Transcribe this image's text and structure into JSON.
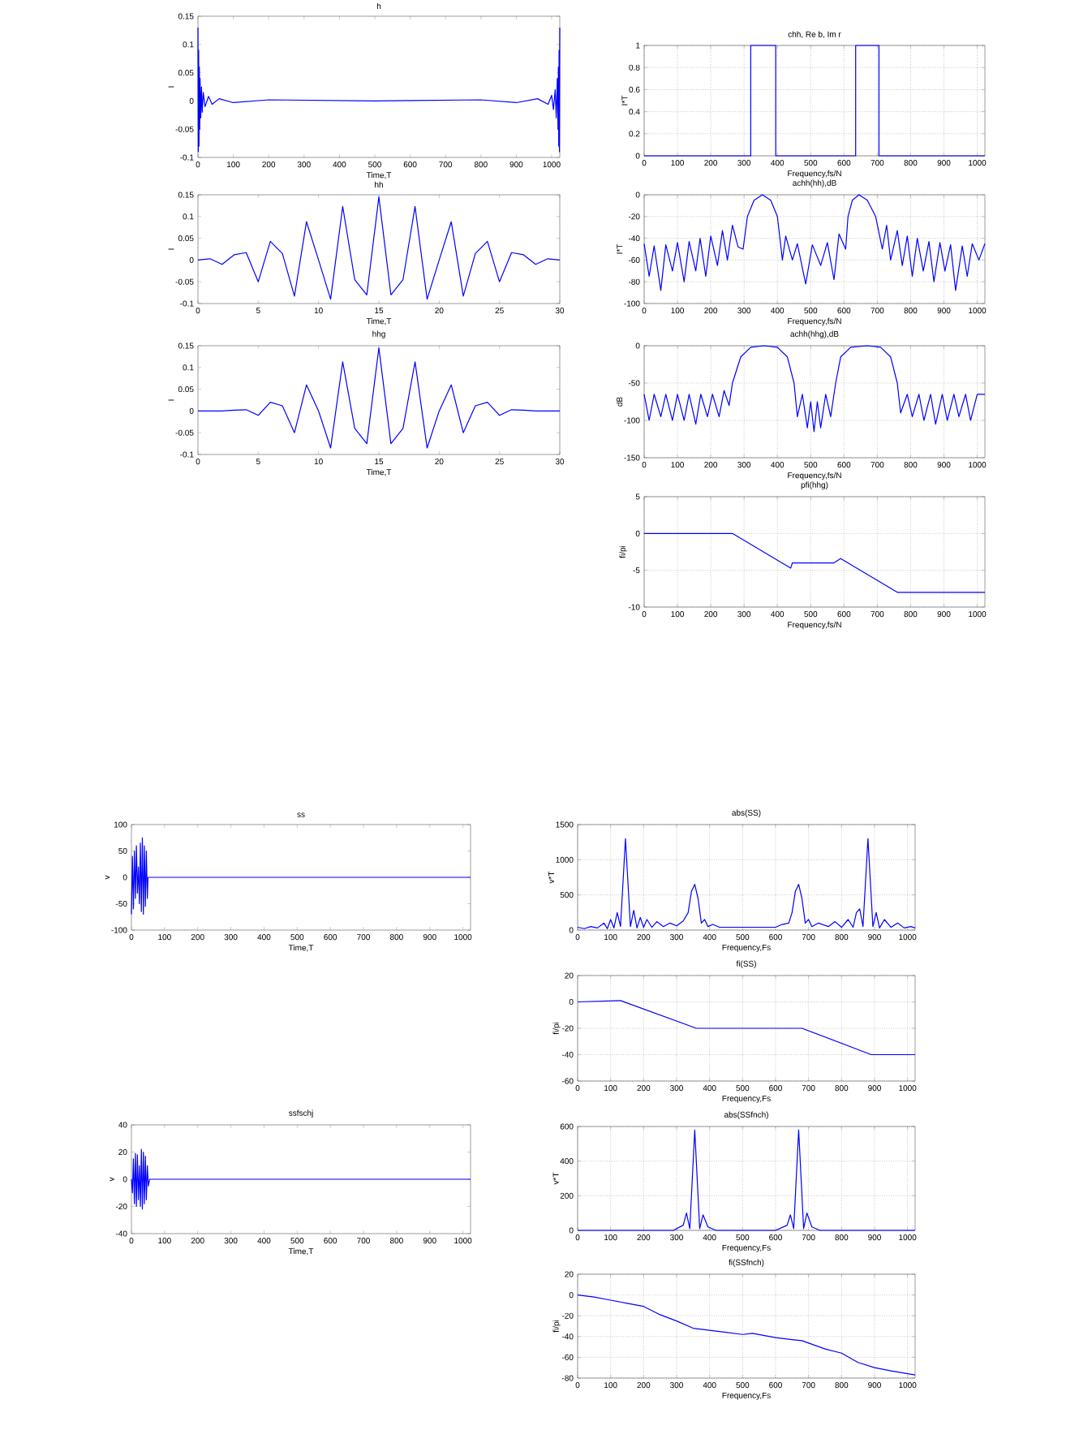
{
  "chart_data": [
    {
      "type": "line",
      "title": "h",
      "xlabel": "Time,T",
      "ylabel": "I",
      "color": "#0000ff",
      "xlim": [
        0,
        1023
      ],
      "ylim": [
        -0.1,
        0.15
      ],
      "xticks": [
        0,
        100,
        200,
        300,
        400,
        500,
        600,
        700,
        800,
        900,
        1000
      ],
      "yticks": [
        -0.1,
        -0.05,
        0,
        0.05,
        0.1,
        0.15
      ],
      "x": [
        0,
        1,
        2,
        3,
        4,
        5,
        6,
        8,
        10,
        12,
        15,
        20,
        30,
        40,
        60,
        100,
        200,
        500,
        800,
        900,
        960,
        990,
        1000,
        1005,
        1010,
        1013,
        1016,
        1018,
        1019,
        1020,
        1021,
        1022,
        1023
      ],
      "values": [
        0.13,
        -0.09,
        0.09,
        -0.08,
        0.06,
        -0.05,
        0.04,
        -0.03,
        0.025,
        -0.02,
        0.015,
        -0.01,
        0.008,
        -0.006,
        0.004,
        -0.003,
        0.002,
        0,
        0.002,
        -0.003,
        0.004,
        -0.006,
        0.01,
        -0.015,
        0.02,
        -0.03,
        0.04,
        -0.05,
        0.06,
        -0.08,
        0.09,
        -0.09,
        0.13
      ]
    },
    {
      "type": "line",
      "title": "hh",
      "xlabel": "Time,T",
      "ylabel": "I",
      "color": "#0000ff",
      "xlim": [
        0,
        30
      ],
      "ylim": [
        -0.1,
        0.15
      ],
      "xticks": [
        0,
        5,
        10,
        15,
        20,
        25,
        30
      ],
      "yticks": [
        -0.1,
        -0.05,
        0,
        0.05,
        0.1,
        0.15
      ],
      "x": [
        0,
        1,
        2,
        3,
        4,
        5,
        6,
        7,
        8,
        9,
        10,
        11,
        12,
        13,
        14,
        15,
        16,
        17,
        18,
        19,
        20,
        21,
        22,
        23,
        24,
        25,
        26,
        27,
        28,
        29,
        30
      ],
      "values": [
        0,
        0.003,
        -0.01,
        0.012,
        0.017,
        -0.05,
        0.043,
        0.015,
        -0.083,
        0.088,
        0,
        -0.09,
        0.123,
        -0.045,
        -0.08,
        0.145,
        -0.08,
        -0.045,
        0.123,
        -0.09,
        0,
        0.088,
        -0.083,
        0.015,
        0.043,
        -0.05,
        0.017,
        0.012,
        -0.01,
        0.003,
        0
      ]
    },
    {
      "type": "line",
      "title": "hhg",
      "xlabel": "Time,T",
      "ylabel": "I",
      "color": "#0000ff",
      "xlim": [
        0,
        30
      ],
      "ylim": [
        -0.1,
        0.15
      ],
      "xticks": [
        0,
        5,
        10,
        15,
        20,
        25,
        30
      ],
      "yticks": [
        -0.1,
        -0.05,
        0,
        0.05,
        0.1,
        0.15
      ],
      "x": [
        0,
        1,
        2,
        3,
        4,
        5,
        6,
        7,
        8,
        9,
        10,
        11,
        12,
        13,
        14,
        15,
        16,
        17,
        18,
        19,
        20,
        21,
        22,
        23,
        24,
        25,
        26,
        27,
        28,
        29,
        30
      ],
      "values": [
        0,
        0,
        0,
        0.002,
        0.003,
        -0.01,
        0.02,
        0.012,
        -0.05,
        0.06,
        0,
        -0.085,
        0.113,
        -0.04,
        -0.075,
        0.145,
        -0.075,
        -0.04,
        0.113,
        -0.085,
        0,
        0.06,
        -0.05,
        0.012,
        0.02,
        -0.01,
        0.003,
        0.002,
        0,
        0,
        0
      ]
    },
    {
      "type": "line",
      "title": "chh, Re b, Im r",
      "xlabel": "Frequency,fs/N",
      "ylabel": "I*T",
      "color": "#0000ff",
      "grid": true,
      "xlim": [
        0,
        1023
      ],
      "ylim": [
        0,
        1
      ],
      "xticks": [
        0,
        100,
        200,
        300,
        400,
        500,
        600,
        700,
        800,
        900,
        1000
      ],
      "yticks": [
        0,
        0.2,
        0.4,
        0.6,
        0.8,
        1
      ],
      "x": [
        0,
        320,
        320,
        395,
        395,
        635,
        635,
        705,
        705,
        1023
      ],
      "values": [
        0,
        0,
        1,
        1,
        0,
        0,
        1,
        1,
        0,
        0
      ]
    },
    {
      "type": "line",
      "title": "achh(hh),dB",
      "xlabel": "Frequency,fs/N",
      "ylabel": "I*T",
      "color": "#0000ff",
      "grid": true,
      "xlim": [
        0,
        1023
      ],
      "ylim": [
        -100,
        0
      ],
      "xticks": [
        0,
        100,
        200,
        300,
        400,
        500,
        600,
        700,
        800,
        900,
        1000
      ],
      "yticks": [
        -100,
        -80,
        -60,
        -40,
        -20,
        0
      ],
      "x": [
        0,
        15,
        30,
        50,
        65,
        85,
        100,
        120,
        135,
        155,
        168,
        185,
        200,
        220,
        235,
        250,
        265,
        282,
        297,
        310,
        330,
        355,
        380,
        400,
        415,
        425,
        445,
        460,
        485,
        505,
        530,
        550,
        570,
        585,
        605,
        612,
        625,
        645,
        670,
        695,
        715,
        728,
        740,
        760,
        775,
        790,
        805,
        820,
        838,
        855,
        870,
        888,
        903,
        920,
        935,
        955,
        970,
        985,
        1005,
        1023
      ],
      "values": [
        -45,
        -75,
        -47,
        -88,
        -46,
        -70,
        -44,
        -80,
        -43,
        -70,
        -40,
        -75,
        -38,
        -65,
        -33,
        -60,
        -28,
        -48,
        -50,
        -20,
        -5,
        0,
        -5,
        -20,
        -60,
        -38,
        -60,
        -45,
        -82,
        -46,
        -65,
        -44,
        -78,
        -36,
        -50,
        -20,
        -5,
        0,
        -5,
        -20,
        -50,
        -28,
        -60,
        -33,
        -65,
        -38,
        -75,
        -40,
        -70,
        -43,
        -80,
        -44,
        -70,
        -46,
        -88,
        -47,
        -75,
        -45,
        -60,
        -45
      ]
    },
    {
      "type": "line",
      "title": "achh(hhg),dB",
      "xlabel": "Frequency,fs/N",
      "ylabel": "dB",
      "color": "#0000ff",
      "grid": true,
      "xlim": [
        0,
        1023
      ],
      "ylim": [
        -150,
        0
      ],
      "xticks": [
        0,
        100,
        200,
        300,
        400,
        500,
        600,
        700,
        800,
        900,
        1000
      ],
      "yticks": [
        -150,
        -100,
        -50,
        0
      ],
      "x": [
        0,
        15,
        30,
        50,
        65,
        85,
        100,
        120,
        135,
        155,
        170,
        190,
        205,
        225,
        240,
        255,
        265,
        290,
        320,
        360,
        400,
        430,
        450,
        460,
        475,
        490,
        500,
        510,
        520,
        530,
        545,
        560,
        575,
        590,
        620,
        670,
        710,
        740,
        760,
        770,
        790,
        805,
        825,
        840,
        860,
        875,
        895,
        910,
        930,
        945,
        965,
        980,
        1000,
        1023
      ],
      "values": [
        -65,
        -100,
        -65,
        -95,
        -65,
        -100,
        -65,
        -100,
        -65,
        -105,
        -65,
        -95,
        -65,
        -95,
        -60,
        -80,
        -50,
        -15,
        -2,
        0,
        -2,
        -15,
        -50,
        -95,
        -65,
        -110,
        -75,
        -115,
        -75,
        -110,
        -65,
        -95,
        -50,
        -15,
        -2,
        0,
        -2,
        -15,
        -50,
        -90,
        -65,
        -95,
        -65,
        -100,
        -65,
        -105,
        -65,
        -100,
        -65,
        -95,
        -65,
        -100,
        -65,
        -65
      ]
    },
    {
      "type": "line",
      "title": "pfi(hhg)",
      "xlabel": "Frequency,fs/N",
      "ylabel": "fi/pi",
      "color": "#0000ff",
      "grid": true,
      "xlim": [
        0,
        1023
      ],
      "ylim": [
        -10,
        5
      ],
      "xticks": [
        0,
        100,
        200,
        300,
        400,
        500,
        600,
        700,
        800,
        900,
        1000
      ],
      "yticks": [
        -10,
        -5,
        0,
        5
      ],
      "x": [
        0,
        250,
        265,
        440,
        445,
        570,
        590,
        760,
        1023
      ],
      "values": [
        0,
        0,
        0,
        -4.7,
        -4,
        -4,
        -3.4,
        -8,
        -8
      ]
    },
    {
      "type": "line",
      "title": "ss",
      "xlabel": "Time,T",
      "ylabel": "v",
      "color": "#0000ff",
      "xlim": [
        0,
        1023
      ],
      "ylim": [
        -100,
        100
      ],
      "xticks": [
        0,
        100,
        200,
        300,
        400,
        500,
        600,
        700,
        800,
        900,
        1000
      ],
      "yticks": [
        -100,
        -50,
        0,
        50,
        100
      ],
      "x": [
        0,
        3,
        6,
        9,
        12,
        15,
        18,
        21,
        24,
        27,
        30,
        33,
        36,
        39,
        42,
        45,
        48,
        50,
        1023
      ],
      "values": [
        -70,
        40,
        -60,
        50,
        -40,
        60,
        -30,
        20,
        -50,
        65,
        -65,
        75,
        -70,
        60,
        -55,
        50,
        -40,
        0,
        0
      ]
    },
    {
      "type": "line",
      "title": "ssfschj",
      "xlabel": "Time,T",
      "ylabel": "v",
      "color": "#0000ff",
      "xlim": [
        0,
        1023
      ],
      "ylim": [
        -40,
        40
      ],
      "xticks": [
        0,
        100,
        200,
        300,
        400,
        500,
        600,
        700,
        800,
        900,
        1000
      ],
      "yticks": [
        -40,
        -20,
        0,
        20,
        40
      ],
      "x": [
        0,
        3,
        6,
        9,
        12,
        15,
        18,
        21,
        24,
        27,
        30,
        33,
        36,
        39,
        42,
        45,
        48,
        51,
        55,
        1023
      ],
      "values": [
        0,
        -10,
        15,
        -18,
        19,
        -20,
        18,
        -15,
        10,
        -20,
        22,
        -22,
        20,
        -18,
        17,
        -15,
        10,
        -5,
        0,
        0
      ]
    },
    {
      "type": "line",
      "title": "abs(SS)",
      "xlabel": "Frequency,Fs",
      "ylabel": "v*T",
      "color": "#0000ff",
      "grid": true,
      "xlim": [
        0,
        1023
      ],
      "ylim": [
        0,
        1500
      ],
      "xticks": [
        0,
        100,
        200,
        300,
        400,
        500,
        600,
        700,
        800,
        900,
        1000
      ],
      "yticks": [
        0,
        500,
        1000,
        1500
      ],
      "x": [
        0,
        20,
        40,
        60,
        80,
        90,
        100,
        110,
        120,
        130,
        145,
        160,
        170,
        180,
        190,
        200,
        210,
        225,
        240,
        260,
        280,
        300,
        320,
        335,
        345,
        355,
        365,
        375,
        385,
        395,
        410,
        430,
        500,
        600,
        620,
        640,
        650,
        660,
        670,
        680,
        690,
        700,
        710,
        730,
        760,
        780,
        800,
        820,
        835,
        845,
        855,
        865,
        880,
        895,
        905,
        915,
        930,
        950,
        970,
        990,
        1010,
        1023
      ],
      "values": [
        40,
        20,
        50,
        30,
        100,
        20,
        150,
        30,
        250,
        50,
        1300,
        50,
        280,
        30,
        180,
        40,
        150,
        40,
        120,
        50,
        100,
        60,
        130,
        250,
        550,
        650,
        450,
        100,
        150,
        50,
        80,
        40,
        40,
        40,
        80,
        100,
        250,
        550,
        650,
        450,
        100,
        150,
        50,
        100,
        50,
        120,
        40,
        150,
        40,
        250,
        300,
        50,
        1300,
        50,
        250,
        30,
        150,
        40,
        100,
        30,
        50,
        30
      ]
    },
    {
      "type": "line",
      "title": "fi(SS)",
      "xlabel": "Frequency,Fs",
      "ylabel": "fi/pi",
      "color": "#0000ff",
      "grid": true,
      "xlim": [
        0,
        1023
      ],
      "ylim": [
        -60,
        20
      ],
      "xticks": [
        0,
        100,
        200,
        300,
        400,
        500,
        600,
        700,
        800,
        900,
        1000
      ],
      "yticks": [
        -60,
        -40,
        -20,
        0,
        20
      ],
      "x": [
        0,
        130,
        360,
        680,
        890,
        1023
      ],
      "values": [
        0,
        1,
        -20,
        -20,
        -40,
        -40
      ]
    },
    {
      "type": "line",
      "title": "abs(SSfnch)",
      "xlabel": "Frequency,Fs",
      "ylabel": "v*T",
      "color": "#0000ff",
      "grid": true,
      "xlim": [
        0,
        1023
      ],
      "ylim": [
        0,
        600
      ],
      "xticks": [
        0,
        100,
        200,
        300,
        400,
        500,
        600,
        700,
        800,
        900,
        1000
      ],
      "yticks": [
        0,
        200,
        400,
        600
      ],
      "x": [
        0,
        290,
        320,
        330,
        340,
        355,
        370,
        380,
        395,
        420,
        600,
        635,
        645,
        655,
        670,
        685,
        695,
        710,
        735,
        1023
      ],
      "values": [
        0,
        0,
        30,
        100,
        10,
        580,
        10,
        90,
        20,
        0,
        0,
        30,
        90,
        10,
        580,
        10,
        100,
        20,
        0,
        0
      ]
    },
    {
      "type": "line",
      "title": "fi(SSfnch)",
      "xlabel": "Frequency,Fs",
      "ylabel": "fi/pi",
      "color": "#0000ff",
      "grid": true,
      "xlim": [
        0,
        1023
      ],
      "ylim": [
        -80,
        20
      ],
      "xticks": [
        0,
        100,
        200,
        300,
        400,
        500,
        600,
        700,
        800,
        900,
        1000
      ],
      "yticks": [
        -80,
        -60,
        -40,
        -20,
        0,
        20
      ],
      "x": [
        0,
        50,
        100,
        150,
        200,
        250,
        300,
        350,
        400,
        450,
        500,
        530,
        600,
        650,
        680,
        750,
        800,
        850,
        900,
        950,
        1023
      ],
      "values": [
        0,
        -2,
        -5,
        -8,
        -11,
        -19,
        -25,
        -32,
        -34,
        -36,
        -38,
        -37,
        -41,
        -43,
        -44,
        -52,
        -56,
        -65,
        -70,
        -73,
        -77
      ]
    }
  ]
}
